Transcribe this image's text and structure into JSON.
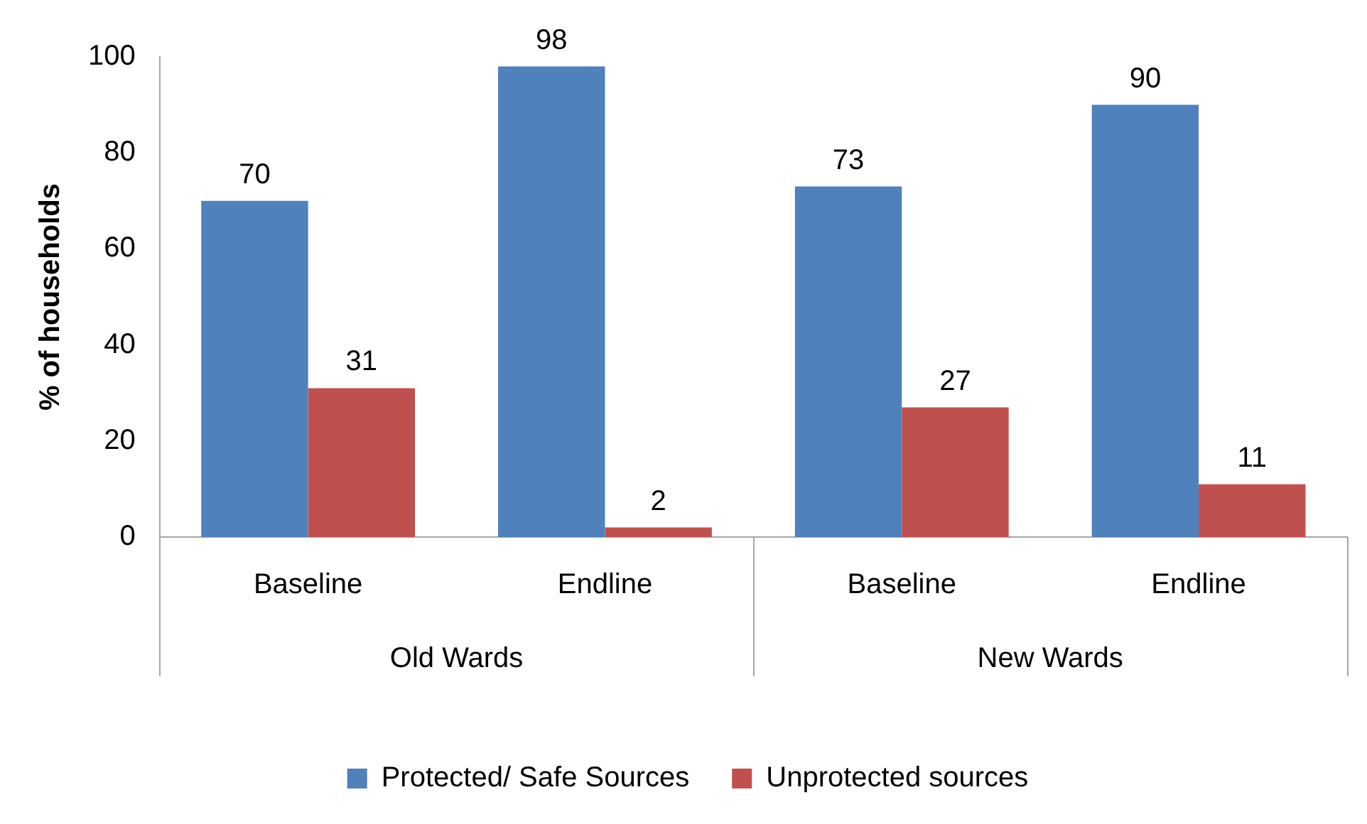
{
  "chart_data": {
    "type": "bar",
    "ylabel": "% of households",
    "categories": [
      "Baseline",
      "Endline",
      "Baseline",
      "Endline"
    ],
    "series": [
      {
        "name": "Protected/ Safe Sources",
        "color": "#4f81bd",
        "values": [
          70,
          98,
          73,
          90
        ]
      },
      {
        "name": "Unprotected sources",
        "color": "#c0504d",
        "values": [
          31,
          2,
          27,
          11
        ]
      }
    ],
    "annotations": [
      "Old Wards",
      "New Wards"
    ],
    "ylim": [
      0,
      100
    ],
    "yticks": [
      0,
      20,
      40,
      60,
      80,
      100
    ],
    "grid": false,
    "legend": "bottom",
    "data_labels": true
  }
}
